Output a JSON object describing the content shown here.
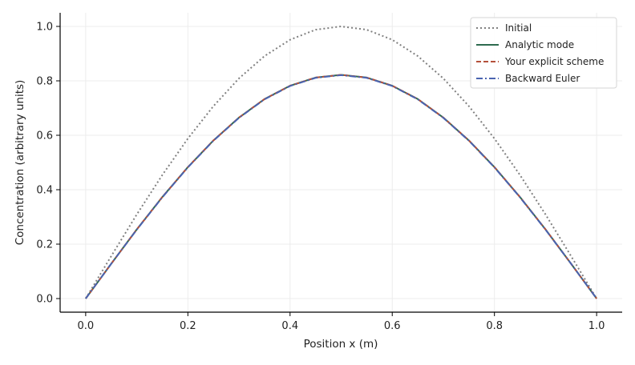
{
  "chart_data": {
    "type": "line",
    "title": "",
    "xlabel": "Position x (m)",
    "ylabel": "Concentration (arbitrary units)",
    "xlim": [
      -0.05,
      1.05
    ],
    "ylim": [
      -0.05,
      1.05
    ],
    "xticks": [
      0.0,
      0.2,
      0.4,
      0.6,
      0.8,
      1.0
    ],
    "xtick_labels": [
      "0.0",
      "0.2",
      "0.4",
      "0.6",
      "0.8",
      "1.0"
    ],
    "yticks": [
      0.0,
      0.2,
      0.4,
      0.6,
      0.8,
      1.0
    ],
    "ytick_labels": [
      "0.0",
      "0.2",
      "0.4",
      "0.6",
      "0.8",
      "1.0"
    ],
    "grid": true,
    "legend_position": "top-right",
    "x": [
      0.0,
      0.05,
      0.1,
      0.15,
      0.2,
      0.25,
      0.3,
      0.35,
      0.4,
      0.45,
      0.5,
      0.55,
      0.6,
      0.65,
      0.7,
      0.75,
      0.8,
      0.85,
      0.9,
      0.95,
      1.0
    ],
    "series": [
      {
        "name": "Initial",
        "color": "#808080",
        "style": "dotted",
        "values": [
          0.0,
          0.156,
          0.309,
          0.454,
          0.588,
          0.707,
          0.809,
          0.891,
          0.951,
          0.988,
          1.0,
          0.988,
          0.951,
          0.891,
          0.809,
          0.707,
          0.588,
          0.454,
          0.309,
          0.156,
          0.0
        ]
      },
      {
        "name": "Analytic mode",
        "color": "#2e6b4f",
        "style": "solid",
        "values": [
          0.0,
          0.128,
          0.254,
          0.373,
          0.483,
          0.581,
          0.665,
          0.733,
          0.782,
          0.812,
          0.822,
          0.812,
          0.782,
          0.733,
          0.665,
          0.581,
          0.483,
          0.373,
          0.254,
          0.128,
          0.0
        ]
      },
      {
        "name": "Your explicit scheme",
        "color": "#b5503a",
        "style": "dashed",
        "values": [
          0.0,
          0.128,
          0.254,
          0.373,
          0.483,
          0.581,
          0.665,
          0.733,
          0.782,
          0.812,
          0.822,
          0.812,
          0.782,
          0.733,
          0.665,
          0.581,
          0.483,
          0.373,
          0.254,
          0.128,
          0.0
        ]
      },
      {
        "name": "Backward Euler",
        "color": "#4a63b0",
        "style": "dashdot",
        "values": [
          0.0,
          0.128,
          0.253,
          0.372,
          0.482,
          0.58,
          0.664,
          0.732,
          0.781,
          0.811,
          0.821,
          0.811,
          0.781,
          0.732,
          0.664,
          0.58,
          0.482,
          0.372,
          0.253,
          0.128,
          0.0
        ]
      }
    ]
  }
}
